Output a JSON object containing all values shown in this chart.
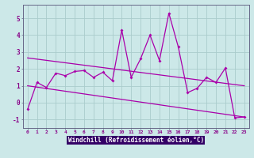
{
  "x": [
    0,
    1,
    2,
    3,
    4,
    5,
    6,
    7,
    8,
    9,
    10,
    11,
    12,
    13,
    14,
    15,
    16,
    17,
    18,
    19,
    20,
    21,
    22,
    23
  ],
  "y_main": [
    -0.4,
    1.2,
    0.9,
    1.75,
    1.6,
    1.85,
    1.9,
    1.5,
    1.8,
    1.3,
    4.3,
    1.5,
    2.6,
    4.0,
    2.5,
    5.3,
    3.3,
    0.6,
    0.85,
    1.5,
    1.2,
    2.05,
    -0.9,
    -0.85
  ],
  "trend1_x": [
    0,
    23
  ],
  "trend1_y": [
    2.65,
    1.0
  ],
  "trend2_x": [
    0,
    23
  ],
  "trend2_y": [
    1.0,
    -0.85
  ],
  "bg_color": "#cce8e8",
  "plot_bg": "#cce8e8",
  "line_color": "#aa00aa",
  "grid_color": "#aacccc",
  "ylabel_ticks": [
    -1,
    0,
    1,
    2,
    3,
    4,
    5
  ],
  "xlabel": "Windchill (Refroidissement éolien,°C)",
  "xlim": [
    -0.5,
    23.5
  ],
  "ylim": [
    -1.5,
    5.8
  ],
  "xlabel_bg": "#330066",
  "tick_label_color": "#880088"
}
